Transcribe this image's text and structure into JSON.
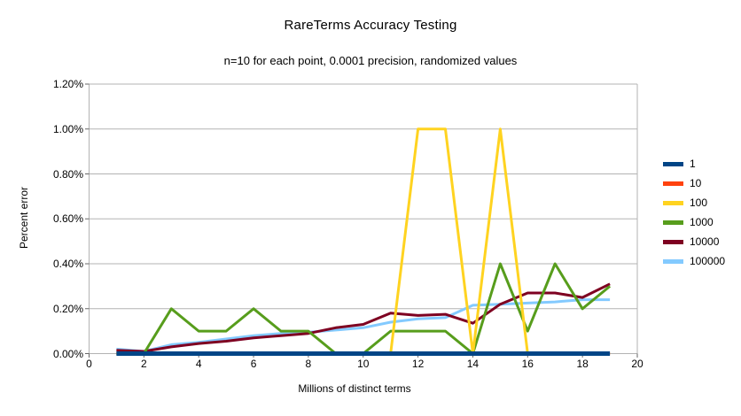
{
  "title": "RareTerms Accuracy Testing",
  "subtitle": "n=10 for each point, 0.0001 precision, randomized values",
  "colors": {
    "background": "#ffffff",
    "grid": "#b3b3b3",
    "axis": "#b3b3b3",
    "text": "#000000"
  },
  "legend": {
    "position": "right",
    "items": [
      {
        "label": "1",
        "color": "#004586"
      },
      {
        "label": "10",
        "color": "#ff420e"
      },
      {
        "label": "100",
        "color": "#ffd320"
      },
      {
        "label": "1000",
        "color": "#579d1c"
      },
      {
        "label": "10000",
        "color": "#7e0021"
      },
      {
        "label": "100000",
        "color": "#83caff"
      }
    ]
  },
  "chart_data": {
    "type": "line",
    "title": "RareTerms Accuracy Testing",
    "subtitle": "n=10 for each point, 0.0001 precision, randomized values",
    "xlabel": "Millions of distinct terms",
    "ylabel": "Percent error",
    "xlim": [
      0,
      20
    ],
    "ylim_percent": [
      0,
      1.2
    ],
    "grid": true,
    "legend_position": "right",
    "x_ticks": [
      0,
      2,
      4,
      6,
      8,
      10,
      12,
      14,
      16,
      18,
      20
    ],
    "y_ticks_percent": [
      0,
      0.2,
      0.4,
      0.6,
      0.8,
      1.0,
      1.2
    ],
    "y_tick_labels": [
      "0.00%",
      "0.20%",
      "0.40%",
      "0.60%",
      "0.80%",
      "1.00%",
      "1.20%"
    ],
    "x": [
      1,
      2,
      3,
      4,
      5,
      6,
      7,
      8,
      9,
      10,
      11,
      12,
      13,
      14,
      15,
      16,
      17,
      18,
      19
    ],
    "series": [
      {
        "name": "1",
        "color": "#004586",
        "stroke_width": 5,
        "values_percent": [
          0,
          0,
          0,
          0,
          0,
          0,
          0,
          0,
          0,
          0,
          0,
          0,
          0,
          0,
          0,
          0,
          0,
          0,
          0
        ]
      },
      {
        "name": "10",
        "color": "#ff420e",
        "stroke_width": 3,
        "values_percent": [
          0,
          0,
          0,
          0,
          0,
          0,
          0,
          0,
          0,
          0,
          0,
          0,
          0,
          0,
          0,
          0,
          0,
          0,
          0
        ]
      },
      {
        "name": "100",
        "color": "#ffd320",
        "stroke_width": 3,
        "values_percent": [
          0,
          0,
          0,
          0,
          0,
          0,
          0,
          0,
          0,
          0,
          0,
          1.0,
          1.0,
          0,
          1.0,
          0,
          0,
          0,
          0
        ]
      },
      {
        "name": "1000",
        "color": "#579d1c",
        "stroke_width": 3,
        "values_percent": [
          0,
          0,
          0.2,
          0.1,
          0.1,
          0.2,
          0.1,
          0.1,
          0,
          0,
          0.1,
          0.1,
          0.1,
          0,
          0.4,
          0.1,
          0.4,
          0.2,
          0.3
        ]
      },
      {
        "name": "10000",
        "color": "#7e0021",
        "stroke_width": 3,
        "values_percent": [
          0.015,
          0.01,
          0.03,
          0.045,
          0.055,
          0.07,
          0.08,
          0.09,
          0.115,
          0.13,
          0.18,
          0.17,
          0.175,
          0.135,
          0.22,
          0.27,
          0.27,
          0.25,
          0.31
        ]
      },
      {
        "name": "100000",
        "color": "#83caff",
        "stroke_width": 3,
        "values_percent": [
          0.02,
          0.01,
          0.04,
          0.05,
          0.065,
          0.08,
          0.09,
          0.095,
          0.105,
          0.115,
          0.14,
          0.155,
          0.16,
          0.215,
          0.22,
          0.225,
          0.23,
          0.24,
          0.24
        ]
      }
    ],
    "draw_order": [
      "100000",
      "10000",
      "1000",
      "100",
      "10",
      "1"
    ]
  }
}
